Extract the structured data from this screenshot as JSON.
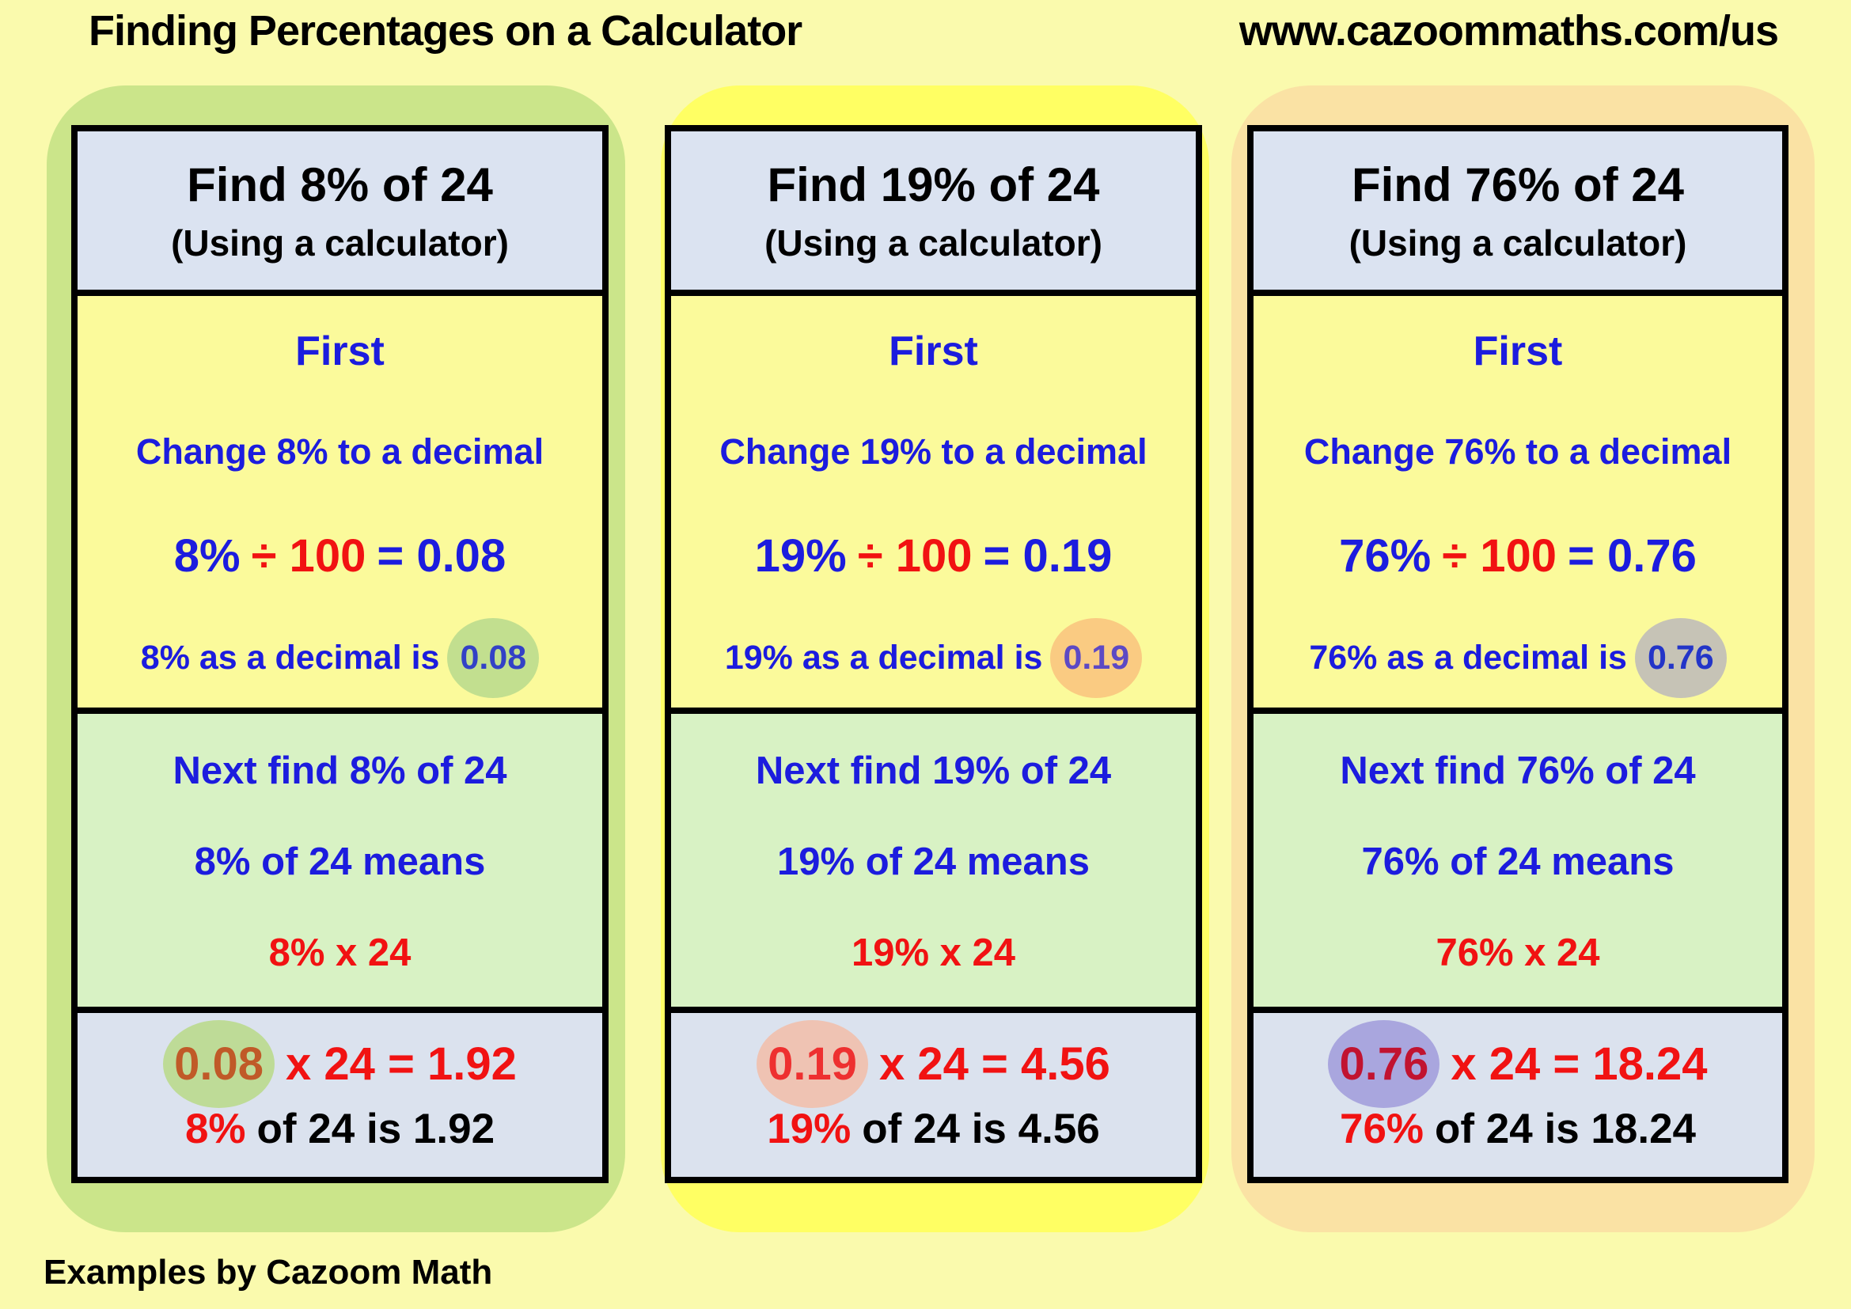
{
  "page": {
    "title": "Finding Percentages on a Calculator",
    "url": "www.cazoommaths.com/us",
    "footer": "Examples by Cazoom Math",
    "background": "#FAFAAD",
    "text_blue": "#1C1CDE",
    "text_red": "#F11212"
  },
  "cards": [
    {
      "header_line1": "Find 8% of 24",
      "header_line2": "(Using a calculator)",
      "first_label": "First",
      "change_line": "Change 8% to a decimal",
      "eq_pct": "8%",
      "eq_op": "÷ 100",
      "eq_result": "= 0.08",
      "decimal_text": "8% as a decimal is",
      "decimal_value": "0.08",
      "next_line1": "Next find 8% of 24",
      "next_line2": "8% of 24 means",
      "next_line3": "8% x 24",
      "result_value": "0.08",
      "result_rest": "x 24  = 1.92",
      "final_pct": "8%",
      "final_rest": "of 24 is 1.92",
      "colors": {
        "panel": "#CBE58A",
        "decimal_highlight": "#C2DF8F",
        "decimal_value_color": "#3341C6",
        "result_highlight": "#BEDB97",
        "result_value_color": "#C05A28"
      }
    },
    {
      "header_line1": "Find 19% of 24",
      "header_line2": "(Using a calculator)",
      "first_label": "First",
      "change_line": "Change 19% to a decimal",
      "eq_pct": "19%",
      "eq_op": "÷ 100",
      "eq_result": "= 0.19",
      "decimal_text": "19% as a decimal is",
      "decimal_value": "0.19",
      "next_line1": "Next find 19% of 24",
      "next_line2": "19% of 24 means",
      "next_line3": "19% x 24",
      "result_value": "0.19",
      "result_rest": "x 24  = 4.56",
      "final_pct": "19%",
      "final_rest": "of 24 is 4.56",
      "colors": {
        "panel": "#FFFF63",
        "decimal_highlight": "#FACB82",
        "decimal_value_color": "#5D49C4",
        "result_highlight": "#EFC3B3",
        "result_value_color": "#EE3030"
      }
    },
    {
      "header_line1": "Find 76% of 24",
      "header_line2": "(Using a calculator)",
      "first_label": "First",
      "change_line": "Change 76% to a decimal",
      "eq_pct": "76%",
      "eq_op": "÷ 100",
      "eq_result": "= 0.76",
      "decimal_text": "76% as a decimal is",
      "decimal_value": "0.76",
      "next_line1": "Next find 76% of 24",
      "next_line2": "76% of 24 means",
      "next_line3": "76% x 24",
      "result_value": "0.76",
      "result_rest": "x 24  = 18.24",
      "final_pct": "76%",
      "final_rest": "of 24 is 18.24",
      "colors": {
        "panel": "#FAE2A4",
        "decimal_highlight": "#C6C3B6",
        "decimal_value_color": "#2335C8",
        "result_highlight": "#A9A6DE",
        "result_value_color": "#C11330"
      }
    }
  ]
}
